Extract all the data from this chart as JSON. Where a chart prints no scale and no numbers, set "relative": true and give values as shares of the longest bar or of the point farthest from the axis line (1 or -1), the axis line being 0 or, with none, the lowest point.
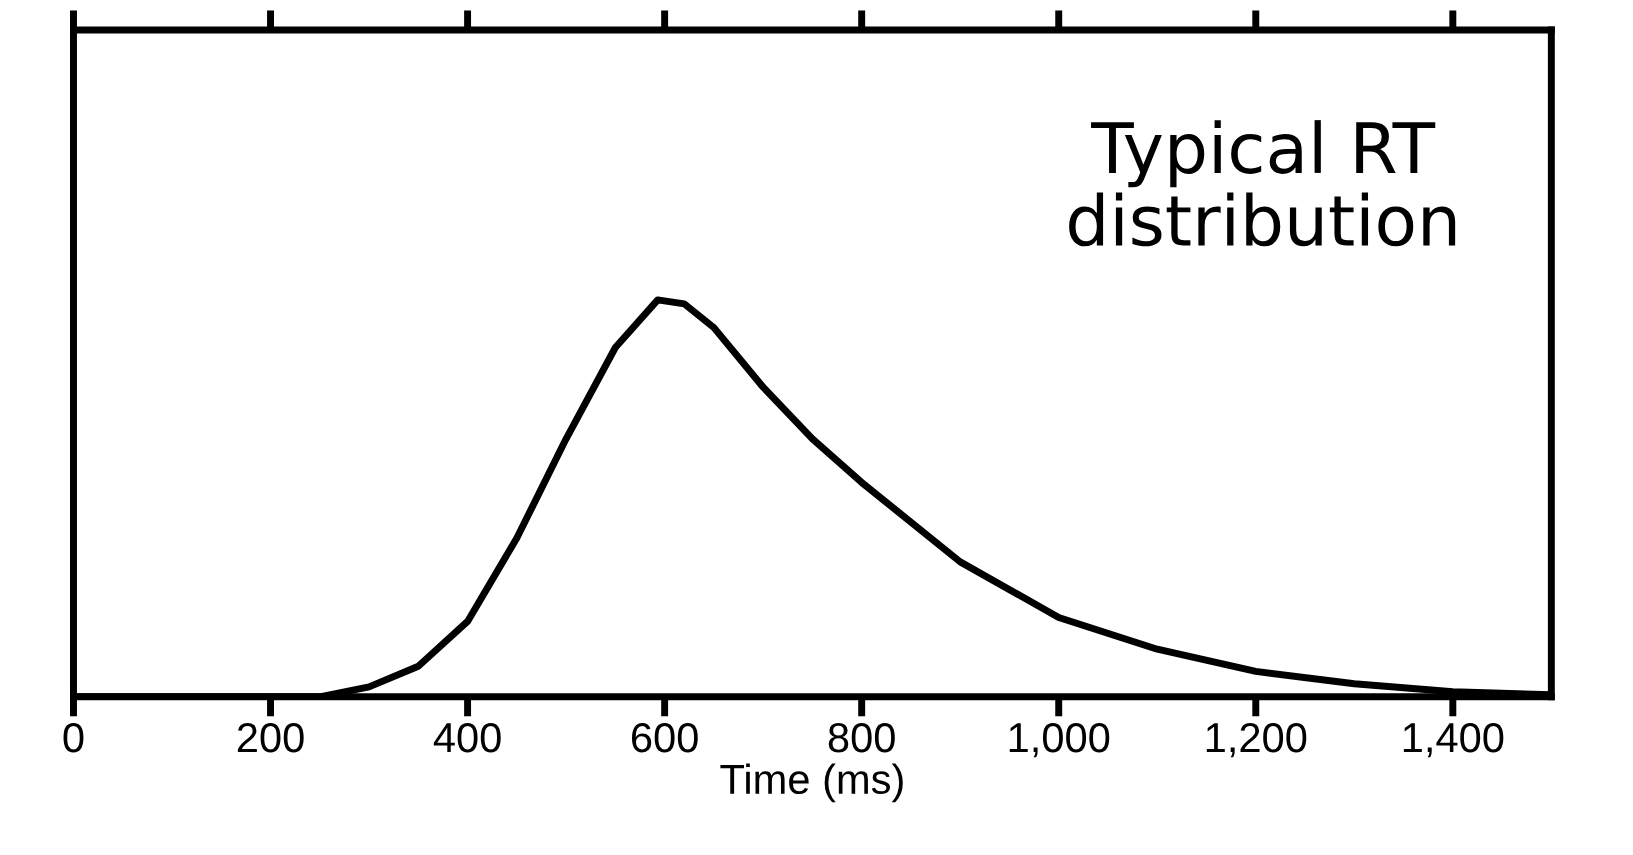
{
  "chart_data": {
    "type": "line",
    "relative": true,
    "xlabel": "Time (ms)",
    "annotations": [
      "Typical RT\ndistribution"
    ],
    "xlim": [
      0,
      1500
    ],
    "xticks": [
      0,
      200,
      400,
      600,
      800,
      {
        "value": 1000,
        "label": "1,000"
      },
      {
        "value": 1200,
        "label": "1,200"
      },
      {
        "value": 1400,
        "label": "1,400"
      }
    ],
    "x": [
      0,
      250,
      300,
      350,
      400,
      450,
      500,
      550,
      593,
      620,
      650,
      700,
      750,
      800,
      900,
      1000,
      1100,
      1200,
      1300,
      1400,
      1500
    ],
    "series": [
      {
        "color": "#000000",
        "values": [
          0,
          0,
          0.025,
          0.077,
          0.19,
          0.4,
          0.65,
          0.88,
          1,
          0.99,
          0.93,
          0.78,
          0.65,
          0.54,
          0.34,
          0.2,
          0.12,
          0.064,
          0.033,
          0.013,
          0.005
        ]
      }
    ],
    "grid": false,
    "legend": false,
    "marker": "none",
    "line_style": "solid",
    "tick_labels": "x"
  }
}
